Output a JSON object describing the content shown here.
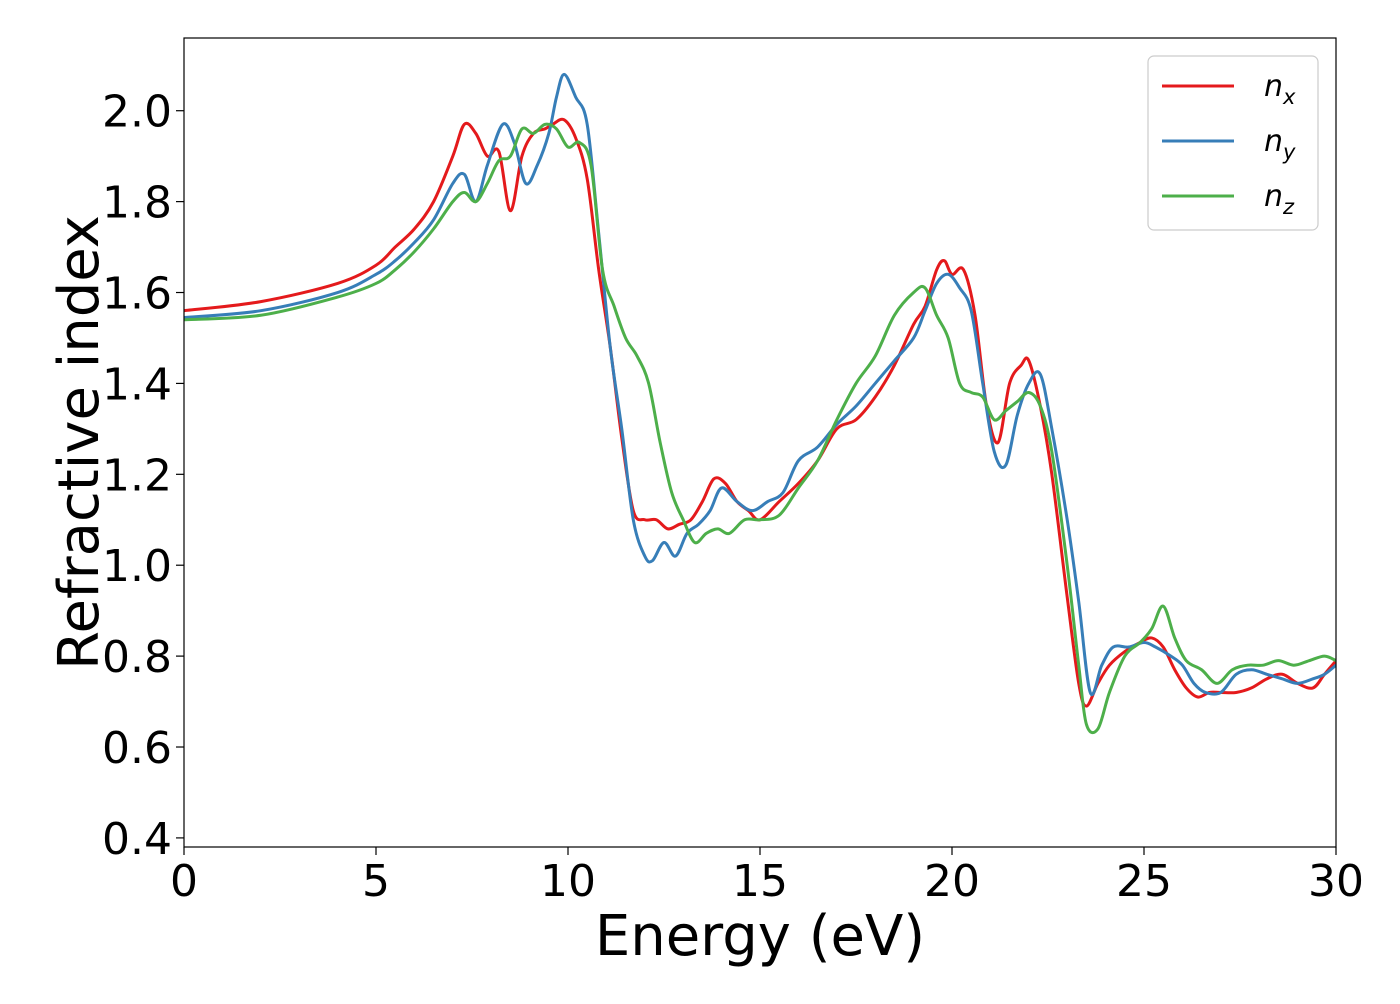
{
  "chart_data": {
    "type": "line",
    "title": "",
    "xlabel": "Energy (eV)",
    "ylabel": "Refractive index",
    "xlim": [
      0,
      30
    ],
    "ylim": [
      0.38,
      2.16
    ],
    "xticks": [
      0,
      5,
      10,
      15,
      20,
      25,
      30
    ],
    "xtick_labels": [
      "0",
      "5",
      "10",
      "15",
      "20",
      "25",
      "30"
    ],
    "yticks": [
      0.4,
      0.6,
      0.8,
      1.0,
      1.2,
      1.4,
      1.6,
      1.8,
      2.0
    ],
    "ytick_labels": [
      "0.4",
      "0.6",
      "0.8",
      "1.0",
      "1.2",
      "1.4",
      "1.6",
      "1.8",
      "2.0"
    ],
    "grid": false,
    "legend_position": "top-right",
    "series": [
      {
        "name": "n_x",
        "label_base": "n",
        "label_sub": "x",
        "color": "#e41a1c",
        "x": [
          0,
          2,
          4,
          5,
          5.5,
          6,
          6.5,
          7,
          7.3,
          7.6,
          7.9,
          8.2,
          8.5,
          8.8,
          9.1,
          9.4,
          9.6,
          9.9,
          10.2,
          10.5,
          10.8,
          11.1,
          11.4,
          11.7,
          12.0,
          12.3,
          12.6,
          12.9,
          13.2,
          13.5,
          13.8,
          14.1,
          14.4,
          14.7,
          15.0,
          15.5,
          16.0,
          16.5,
          17.0,
          17.5,
          18.0,
          18.5,
          19.0,
          19.3,
          19.6,
          19.8,
          20.0,
          20.3,
          20.6,
          20.9,
          21.2,
          21.5,
          21.8,
          22.0,
          22.3,
          22.6,
          23.0,
          23.3,
          23.5,
          23.8,
          24.1,
          24.5,
          24.9,
          25.2,
          25.5,
          25.8,
          26.1,
          26.4,
          26.7,
          27.0,
          27.4,
          27.8,
          28.2,
          28.6,
          29.0,
          29.4,
          29.7,
          30.0
        ],
        "y": [
          1.56,
          1.58,
          1.62,
          1.66,
          1.7,
          1.74,
          1.8,
          1.9,
          1.97,
          1.95,
          1.9,
          1.91,
          1.78,
          1.9,
          1.95,
          1.96,
          1.97,
          1.98,
          1.94,
          1.85,
          1.65,
          1.48,
          1.28,
          1.12,
          1.1,
          1.1,
          1.08,
          1.09,
          1.1,
          1.14,
          1.19,
          1.18,
          1.14,
          1.12,
          1.1,
          1.14,
          1.18,
          1.23,
          1.3,
          1.32,
          1.37,
          1.44,
          1.53,
          1.57,
          1.65,
          1.67,
          1.64,
          1.65,
          1.55,
          1.35,
          1.27,
          1.4,
          1.44,
          1.45,
          1.35,
          1.2,
          0.93,
          0.74,
          0.69,
          0.74,
          0.78,
          0.81,
          0.83,
          0.84,
          0.82,
          0.77,
          0.73,
          0.71,
          0.72,
          0.72,
          0.72,
          0.73,
          0.75,
          0.76,
          0.74,
          0.73,
          0.76,
          0.79
        ]
      },
      {
        "name": "n_y",
        "label_base": "n",
        "label_sub": "y",
        "color": "#377eb8",
        "x": [
          0,
          2,
          4,
          5,
          5.5,
          6,
          6.5,
          7,
          7.3,
          7.6,
          7.9,
          8.3,
          8.6,
          8.9,
          9.2,
          9.5,
          9.7,
          9.9,
          10.2,
          10.5,
          10.8,
          11.1,
          11.4,
          11.7,
          12.0,
          12.2,
          12.5,
          12.8,
          13.1,
          13.4,
          13.7,
          14.0,
          14.4,
          14.8,
          15.2,
          15.6,
          16.0,
          16.5,
          17.0,
          17.5,
          18.0,
          18.5,
          19.0,
          19.3,
          19.6,
          19.9,
          20.2,
          20.5,
          20.8,
          21.1,
          21.4,
          21.7,
          22.0,
          22.3,
          22.6,
          23.0,
          23.3,
          23.6,
          23.9,
          24.2,
          24.6,
          25.0,
          25.3,
          25.7,
          26.0,
          26.3,
          26.6,
          27.0,
          27.4,
          27.8,
          28.2,
          28.6,
          29.0,
          29.4,
          29.7,
          30.0
        ],
        "y": [
          1.545,
          1.56,
          1.6,
          1.64,
          1.67,
          1.71,
          1.76,
          1.84,
          1.86,
          1.8,
          1.88,
          1.97,
          1.93,
          1.84,
          1.88,
          1.95,
          2.03,
          2.08,
          2.03,
          1.97,
          1.73,
          1.48,
          1.3,
          1.1,
          1.02,
          1.01,
          1.05,
          1.02,
          1.07,
          1.09,
          1.12,
          1.17,
          1.14,
          1.12,
          1.14,
          1.16,
          1.23,
          1.26,
          1.31,
          1.35,
          1.4,
          1.45,
          1.5,
          1.56,
          1.62,
          1.64,
          1.61,
          1.56,
          1.4,
          1.25,
          1.22,
          1.33,
          1.4,
          1.42,
          1.3,
          1.1,
          0.92,
          0.72,
          0.78,
          0.82,
          0.82,
          0.83,
          0.82,
          0.8,
          0.78,
          0.74,
          0.72,
          0.72,
          0.76,
          0.77,
          0.76,
          0.75,
          0.74,
          0.75,
          0.76,
          0.78
        ]
      },
      {
        "name": "n_z",
        "label_base": "n",
        "label_sub": "z",
        "color": "#4daf4a",
        "x": [
          0,
          2,
          4,
          5,
          5.5,
          6,
          6.5,
          7,
          7.3,
          7.6,
          7.9,
          8.2,
          8.5,
          8.8,
          9.1,
          9.4,
          9.7,
          10.0,
          10.3,
          10.6,
          10.9,
          11.2,
          11.5,
          11.8,
          12.1,
          12.4,
          12.7,
          13.0,
          13.3,
          13.6,
          13.9,
          14.2,
          14.6,
          15.0,
          15.5,
          16.0,
          16.5,
          17.0,
          17.5,
          18.0,
          18.5,
          19.0,
          19.3,
          19.6,
          19.9,
          20.2,
          20.5,
          20.8,
          21.1,
          21.4,
          21.7,
          22.0,
          22.3,
          22.6,
          23.0,
          23.3,
          23.5,
          23.8,
          24.1,
          24.5,
          24.9,
          25.2,
          25.5,
          25.8,
          26.1,
          26.5,
          26.9,
          27.3,
          27.7,
          28.1,
          28.5,
          28.9,
          29.3,
          29.7,
          30.0
        ],
        "y": [
          1.54,
          1.55,
          1.59,
          1.62,
          1.65,
          1.69,
          1.74,
          1.8,
          1.82,
          1.8,
          1.84,
          1.89,
          1.9,
          1.96,
          1.95,
          1.97,
          1.96,
          1.92,
          1.93,
          1.88,
          1.65,
          1.57,
          1.5,
          1.46,
          1.4,
          1.27,
          1.16,
          1.1,
          1.05,
          1.07,
          1.08,
          1.07,
          1.1,
          1.1,
          1.11,
          1.17,
          1.23,
          1.32,
          1.4,
          1.46,
          1.55,
          1.6,
          1.61,
          1.55,
          1.5,
          1.4,
          1.38,
          1.37,
          1.32,
          1.34,
          1.36,
          1.38,
          1.35,
          1.25,
          1.0,
          0.78,
          0.65,
          0.64,
          0.72,
          0.8,
          0.83,
          0.86,
          0.91,
          0.84,
          0.79,
          0.77,
          0.74,
          0.77,
          0.78,
          0.78,
          0.79,
          0.78,
          0.79,
          0.8,
          0.79
        ]
      }
    ]
  }
}
